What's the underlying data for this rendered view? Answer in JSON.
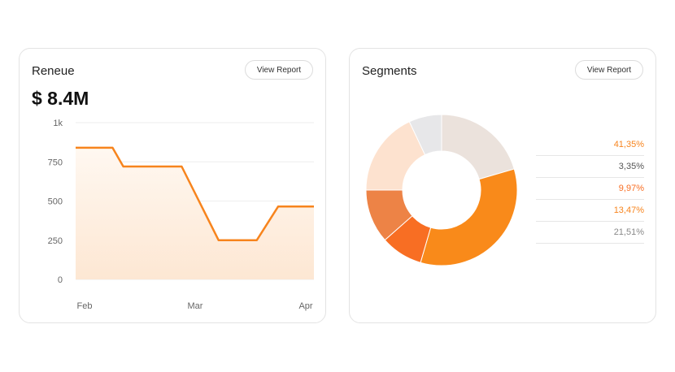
{
  "revenue_card": {
    "title": "Reneue",
    "button_label": "View Report",
    "total": "$ 8.4M"
  },
  "segments_card": {
    "title": "Segments",
    "button_label": "View Report"
  },
  "colors": {
    "accent": "#f7841d",
    "area_top": "#fde7d3",
    "area_bottom": "#fff8f1",
    "grid": "#eeeeee",
    "axis_text": "#666666"
  },
  "chart_data": [
    {
      "type": "area",
      "title": "",
      "xlabel": "",
      "ylabel": "",
      "ylim": [
        0,
        1000
      ],
      "y_ticks": [
        0,
        250,
        500,
        750,
        1000
      ],
      "y_tick_labels": [
        "0",
        "250",
        "500",
        "750",
        "1k"
      ],
      "x_tick_labels": [
        "Feb",
        "Mar",
        "Apr"
      ],
      "grid": true,
      "series": [
        {
          "values": [
            840,
            840,
            720,
            720,
            250,
            250,
            465,
            465
          ]
        }
      ]
    },
    {
      "type": "pie",
      "title": "",
      "donut": true,
      "slices": [
        {
          "value": 20.5,
          "color": "#ebe2dc"
        },
        {
          "value": 34.0,
          "color": "#f98a1a"
        },
        {
          "value": 9.0,
          "color": "#f86e23"
        },
        {
          "value": 11.5,
          "color": "#ed8346"
        },
        {
          "value": 18.0,
          "color": "#fde2cf"
        },
        {
          "value": 7.0,
          "color": "#e7e7e9"
        }
      ],
      "legend": [
        {
          "label": "41,35%",
          "color": "#f7841d"
        },
        {
          "label": "3,35%",
          "color": "#555555"
        },
        {
          "label": "9,97%",
          "color": "#f86e23"
        },
        {
          "label": "13,47%",
          "color": "#f7841d"
        },
        {
          "label": "21,51%",
          "color": "#888888"
        }
      ]
    }
  ]
}
